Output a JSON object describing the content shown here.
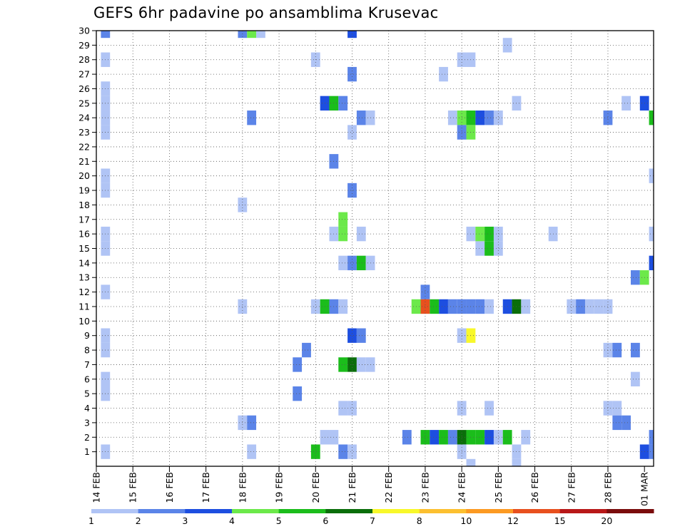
{
  "chart_data": {
    "type": "heatmap",
    "title": "GEFS 6hr padavine po ansamblima Krusevac",
    "xlabel": "",
    "ylabel": "",
    "x_tick_labels": [
      "14 FEB",
      "15 FEB",
      "16 FEB",
      "17 FEB",
      "18 FEB",
      "19 FEB",
      "20 FEB",
      "21 FEB",
      "22 FEB",
      "23 FEB",
      "24 FEB",
      "25 FEB",
      "26 FEB",
      "27 FEB",
      "28 FEB",
      "01 MAR"
    ],
    "x_range_steps": [
      0,
      61
    ],
    "x_steps_per_day": 4,
    "y_tick_labels": [
      "1",
      "2",
      "3",
      "4",
      "5",
      "6",
      "7",
      "8",
      "9",
      "10",
      "11",
      "12",
      "13",
      "14",
      "15",
      "16",
      "17",
      "18",
      "19",
      "20",
      "21",
      "22",
      "23",
      "24",
      "25",
      "26",
      "27",
      "28",
      "29",
      "30"
    ],
    "y_range": [
      0,
      30
    ],
    "grid": true,
    "colorbar": {
      "labels": [
        "1",
        "2",
        "3",
        "4",
        "5",
        "6",
        "7",
        "8",
        "10",
        "12",
        "15",
        "20"
      ],
      "colors": [
        "#b0c4f5",
        "#5b84e8",
        "#1d4ee0",
        "#6ce94a",
        "#1bbd1b",
        "#0a6e0a",
        "#f8f82a",
        "#fcc030",
        "#fc9a22",
        "#e8501e",
        "#b81818",
        "#7a0c0c"
      ]
    },
    "cells": [
      [
        1,
        30,
        1
      ],
      [
        1,
        28,
        0
      ],
      [
        1,
        25,
        0
      ],
      [
        1,
        24,
        0
      ],
      [
        1,
        23,
        0
      ],
      [
        1,
        26,
        0
      ],
      [
        1,
        20,
        0
      ],
      [
        1,
        19,
        0
      ],
      [
        1,
        16,
        0
      ],
      [
        1,
        15,
        0
      ],
      [
        1,
        12,
        0
      ],
      [
        1,
        9,
        0
      ],
      [
        1,
        8,
        0
      ],
      [
        1,
        6,
        0
      ],
      [
        1,
        5,
        0
      ],
      [
        1,
        1,
        0
      ],
      [
        16,
        30,
        1
      ],
      [
        17,
        30,
        3
      ],
      [
        18,
        30,
        0
      ],
      [
        16,
        18,
        0
      ],
      [
        17,
        24,
        1
      ],
      [
        16,
        11,
        0
      ],
      [
        16,
        3,
        0
      ],
      [
        17,
        3,
        1
      ],
      [
        17,
        1,
        0
      ],
      [
        22,
        7,
        1
      ],
      [
        23,
        8,
        1
      ],
      [
        22,
        5,
        1
      ],
      [
        24,
        28,
        0
      ],
      [
        24,
        11,
        0
      ],
      [
        24,
        1,
        4
      ],
      [
        25,
        25,
        2
      ],
      [
        26,
        25,
        4
      ],
      [
        27,
        25,
        1
      ],
      [
        25,
        11,
        4
      ],
      [
        26,
        11,
        1
      ],
      [
        27,
        11,
        0
      ],
      [
        25,
        2,
        0
      ],
      [
        26,
        2,
        0
      ],
      [
        26,
        21,
        1
      ],
      [
        26,
        16,
        0
      ],
      [
        27,
        14,
        0
      ],
      [
        27,
        17,
        3
      ],
      [
        27,
        16,
        3
      ],
      [
        27,
        7,
        4
      ],
      [
        27,
        4,
        0
      ],
      [
        27,
        1,
        1
      ],
      [
        28,
        30,
        2
      ],
      [
        28,
        27,
        1
      ],
      [
        28,
        23,
        0
      ],
      [
        28,
        19,
        1
      ],
      [
        28,
        14,
        1
      ],
      [
        28,
        9,
        2
      ],
      [
        28,
        7,
        5
      ],
      [
        28,
        4,
        0
      ],
      [
        28,
        1,
        0
      ],
      [
        29,
        24,
        1
      ],
      [
        29,
        16,
        0
      ],
      [
        29,
        14,
        4
      ],
      [
        29,
        9,
        1
      ],
      [
        29,
        7,
        0
      ],
      [
        30,
        24,
        0
      ],
      [
        30,
        14,
        0
      ],
      [
        30,
        7,
        0
      ],
      [
        34,
        2,
        1
      ],
      [
        36,
        12,
        1
      ],
      [
        35,
        11,
        3
      ],
      [
        36,
        11,
        9
      ],
      [
        37,
        11,
        4
      ],
      [
        38,
        11,
        2
      ],
      [
        36,
        2,
        4
      ],
      [
        37,
        2,
        2
      ],
      [
        38,
        2,
        4
      ],
      [
        38,
        27,
        0
      ],
      [
        39,
        24,
        0
      ],
      [
        39,
        11,
        1
      ],
      [
        39,
        2,
        1
      ],
      [
        40,
        28,
        0
      ],
      [
        40,
        24,
        3
      ],
      [
        40,
        23,
        1
      ],
      [
        40,
        11,
        1
      ],
      [
        40,
        9,
        0
      ],
      [
        40,
        4,
        0
      ],
      [
        40,
        2,
        5
      ],
      [
        40,
        1,
        0
      ],
      [
        41,
        28,
        0
      ],
      [
        41,
        24,
        4
      ],
      [
        41,
        23,
        3
      ],
      [
        41,
        16,
        0
      ],
      [
        41,
        11,
        1
      ],
      [
        41,
        9,
        6
      ],
      [
        41,
        2,
        4
      ],
      [
        41,
        0,
        0
      ],
      [
        42,
        24,
        2
      ],
      [
        42,
        11,
        1
      ],
      [
        42,
        15,
        0
      ],
      [
        42,
        16,
        3
      ],
      [
        42,
        2,
        4
      ],
      [
        43,
        24,
        1
      ],
      [
        43,
        16,
        4
      ],
      [
        43,
        15,
        4
      ],
      [
        43,
        11,
        0
      ],
      [
        43,
        4,
        0
      ],
      [
        43,
        2,
        2
      ],
      [
        44,
        16,
        0
      ],
      [
        44,
        15,
        0
      ],
      [
        44,
        24,
        0
      ],
      [
        44,
        2,
        0
      ],
      [
        45,
        29,
        0
      ],
      [
        45,
        11,
        2
      ],
      [
        45,
        2,
        4
      ],
      [
        46,
        25,
        0
      ],
      [
        46,
        11,
        5
      ],
      [
        46,
        1,
        0
      ],
      [
        46,
        0,
        0
      ],
      [
        47,
        11,
        0
      ],
      [
        47,
        2,
        0
      ],
      [
        50,
        16,
        0
      ],
      [
        52,
        11,
        0
      ],
      [
        53,
        11,
        1
      ],
      [
        54,
        11,
        0
      ],
      [
        55,
        11,
        0
      ],
      [
        56,
        11,
        0
      ],
      [
        56,
        24,
        1
      ],
      [
        56,
        8,
        0
      ],
      [
        56,
        4,
        0
      ],
      [
        57,
        8,
        1
      ],
      [
        57,
        4,
        0
      ],
      [
        57,
        3,
        1
      ],
      [
        58,
        3,
        1
      ],
      [
        58,
        25,
        0
      ],
      [
        59,
        8,
        1
      ],
      [
        59,
        13,
        1
      ],
      [
        59,
        6,
        0
      ],
      [
        60,
        13,
        3
      ],
      [
        60,
        25,
        2
      ],
      [
        60,
        1,
        2
      ],
      [
        61,
        24,
        4
      ],
      [
        61,
        20,
        0
      ],
      [
        61,
        16,
        0
      ],
      [
        61,
        14,
        2
      ],
      [
        61,
        2,
        1
      ],
      [
        61,
        1,
        1
      ]
    ]
  }
}
